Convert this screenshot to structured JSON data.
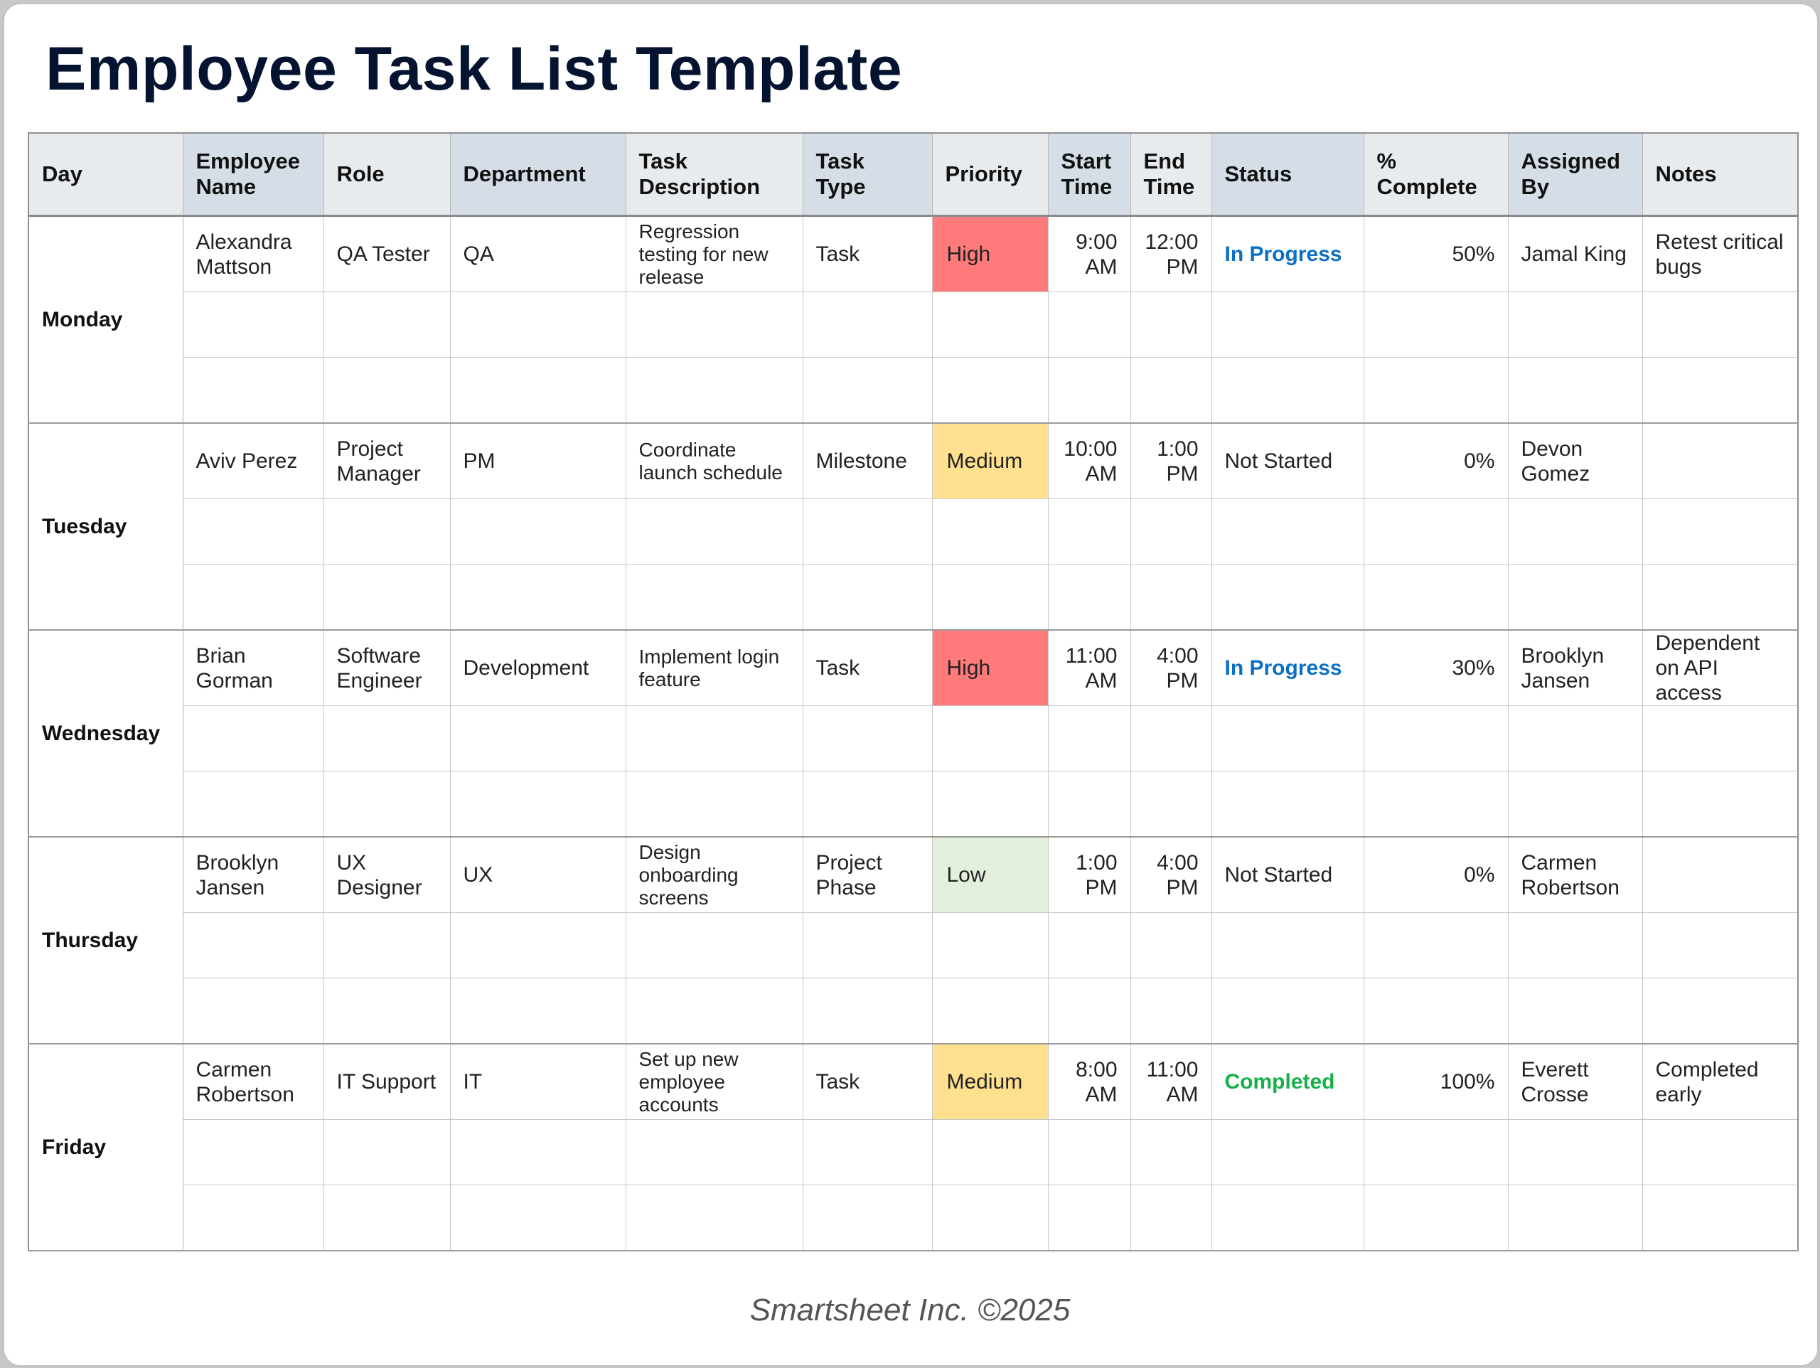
{
  "title": "Employee Task List Template",
  "footer": "Smartsheet Inc. ©2025",
  "colors": {
    "high": "#ff7b7b",
    "medium": "#ffe08f",
    "low": "#e2efda",
    "in_progress": "#0b6fc4",
    "completed": "#16b04a",
    "not_started": "#222222"
  },
  "headers": [
    "Day",
    "Employee Name",
    "Role",
    "Department",
    "Task Description",
    "Task Type",
    "Priority",
    "Start Time",
    "End Time",
    "Status",
    "% Complete",
    "Assigned By",
    "Notes"
  ],
  "rows": [
    {
      "day": "Monday",
      "employee": "Alexandra Mattson",
      "role": "QA Tester",
      "department": "QA",
      "description": "Regression testing for new release",
      "type": "Task",
      "priority": "High",
      "start": "9:00 AM",
      "end": "12:00 PM",
      "status": "In Progress",
      "percent": "50%",
      "assigned_by": "Jamal King",
      "notes": "Retest critical bugs"
    },
    {
      "day": "Tuesday",
      "employee": "Aviv Perez",
      "role": "Project Manager",
      "department": "PM",
      "description": "Coordinate launch schedule",
      "type": "Milestone",
      "priority": "Medium",
      "start": "10:00 AM",
      "end": "1:00 PM",
      "status": "Not Started",
      "percent": "0%",
      "assigned_by": "Devon Gomez",
      "notes": ""
    },
    {
      "day": "Wednesday",
      "employee": "Brian Gorman",
      "role": "Software Engineer",
      "department": "Development",
      "description": "Implement login feature",
      "type": "Task",
      "priority": "High",
      "start": "11:00 AM",
      "end": "4:00 PM",
      "status": "In Progress",
      "percent": "30%",
      "assigned_by": "Brooklyn Jansen",
      "notes": "Dependent on API access"
    },
    {
      "day": "Thursday",
      "employee": "Brooklyn Jansen",
      "role": "UX Designer",
      "department": "UX",
      "description": "Design onboarding screens",
      "type": "Project Phase",
      "priority": "Low",
      "start": "1:00 PM",
      "end": "4:00 PM",
      "status": "Not Started",
      "percent": "0%",
      "assigned_by": "Carmen Robertson",
      "notes": ""
    },
    {
      "day": "Friday",
      "employee": "Carmen Robertson",
      "role": "IT Support",
      "department": "IT",
      "description": "Set up new employee accounts",
      "type": "Task",
      "priority": "Medium",
      "start": "8:00 AM",
      "end": "11:00 AM",
      "status": "Completed",
      "percent": "100%",
      "assigned_by": "Everett Crosse",
      "notes": "Completed early"
    }
  ]
}
